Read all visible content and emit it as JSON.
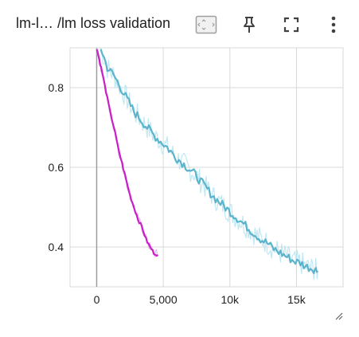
{
  "header": {
    "title": "lm-l… /lm loss validation",
    "icons": [
      "fit-domain-icon",
      "pin-icon",
      "fullscreen-icon",
      "more-vert-icon"
    ]
  },
  "colors": {
    "series_validation": "#5bb4cc",
    "series_validation_smoothed_raw": "#b8e6f2",
    "series_other": "#c81fc8",
    "series_other_raw": "#e9a6ea",
    "grid": "#d9d9d9",
    "zero_axis": "#9e9e9e"
  },
  "chart_data": {
    "type": "line",
    "title": "",
    "xlabel": "",
    "ylabel": "",
    "xlim": [
      -2000,
      18500
    ],
    "ylim": [
      0.3,
      0.9
    ],
    "xticks": [
      0,
      5000,
      10000,
      15000
    ],
    "xtick_labels": [
      "0",
      "5,000",
      "10k",
      "15k"
    ],
    "yticks": [
      0.4,
      0.6,
      0.8
    ],
    "ytick_labels": [
      "0.4",
      "0.6",
      "0.8"
    ],
    "grid": true,
    "series": [
      {
        "x": [
          0,
          200,
          400,
          700,
          1000,
          1300,
          1600,
          1900,
          2200,
          2500,
          2800,
          3100,
          3400,
          3700,
          4000,
          4300,
          4600
        ],
        "values": [
          0.9,
          0.87,
          0.84,
          0.79,
          0.74,
          0.7,
          0.65,
          0.61,
          0.57,
          0.53,
          0.5,
          0.47,
          0.45,
          0.42,
          0.4,
          0.385,
          0.38
        ]
      },
      {
        "x": [
          300,
          800,
          1300,
          1800,
          2300,
          2800,
          3300,
          3800,
          4300,
          4800,
          5300,
          5800,
          6300,
          6800,
          7300,
          7800,
          8300,
          8800,
          9300,
          9800,
          10300,
          10800,
          11300,
          11800,
          12300,
          12800,
          13300,
          13800,
          14300,
          14800,
          15300,
          15800,
          16300,
          16600
        ],
        "values": [
          0.9,
          0.85,
          0.83,
          0.8,
          0.77,
          0.74,
          0.72,
          0.7,
          0.68,
          0.665,
          0.65,
          0.63,
          0.615,
          0.6,
          0.585,
          0.565,
          0.545,
          0.525,
          0.51,
          0.495,
          0.48,
          0.465,
          0.45,
          0.435,
          0.42,
          0.41,
          0.395,
          0.385,
          0.375,
          0.365,
          0.36,
          0.35,
          0.345,
          0.34
        ]
      }
    ]
  }
}
